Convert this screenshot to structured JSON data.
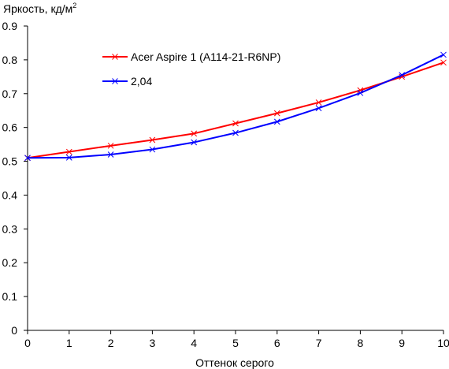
{
  "chart_data": {
    "type": "line",
    "title": "",
    "xlabel": "Оттенок серого",
    "ylabel": "Яркость, кд/м",
    "ylabel_superscript": "2",
    "xlim": [
      0,
      10
    ],
    "ylim": [
      0,
      0.9
    ],
    "x_ticks": [
      0,
      1,
      2,
      3,
      4,
      5,
      6,
      7,
      8,
      9,
      10
    ],
    "y_ticks": [
      0,
      0.1,
      0.2,
      0.3,
      0.4,
      0.5,
      0.6,
      0.7,
      0.8,
      0.9
    ],
    "x_tick_labels": [
      "0",
      "1",
      "2",
      "3",
      "4",
      "5",
      "6",
      "7",
      "8",
      "9",
      "10"
    ],
    "y_tick_labels": [
      "0",
      "0.1",
      "0.2",
      "0.3",
      "0.4",
      "0.5",
      "0.6",
      "0.7",
      "0.8",
      "0.9"
    ],
    "grid": false,
    "legend_position": "top-left",
    "x": [
      0,
      1,
      2,
      3,
      4,
      5,
      6,
      7,
      8,
      9,
      10
    ],
    "series": [
      {
        "name": "Acer Aspire 1 (A114-21-R6NP)",
        "color": "#ff0000",
        "marker": "x",
        "values": [
          0.51,
          0.528,
          0.546,
          0.563,
          0.582,
          0.612,
          0.642,
          0.674,
          0.71,
          0.75,
          0.792
        ]
      },
      {
        "name": "2,04",
        "color": "#0000ff",
        "marker": "x",
        "values": [
          0.51,
          0.511,
          0.52,
          0.535,
          0.556,
          0.584,
          0.617,
          0.657,
          0.702,
          0.755,
          0.815
        ]
      }
    ]
  }
}
